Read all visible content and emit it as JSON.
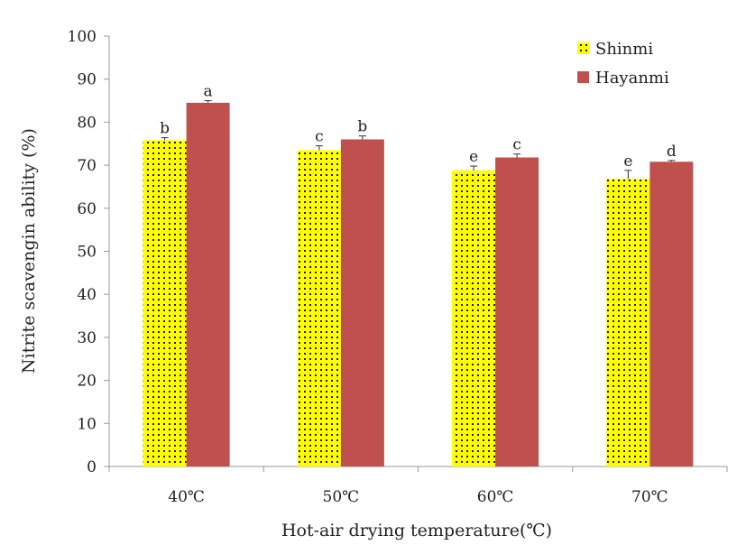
{
  "chart_data": {
    "type": "bar",
    "title": "",
    "xlabel": "Hot-air drying temperature(℃)",
    "ylabel": "Nitrite scavengin ability (%)",
    "categories": [
      "40℃",
      "50℃",
      "60℃",
      "70℃"
    ],
    "ylim": [
      0,
      100
    ],
    "yticks": [
      0,
      10,
      20,
      30,
      40,
      50,
      60,
      70,
      80,
      90,
      100
    ],
    "grid": false,
    "legend_position": "top-right",
    "series": [
      {
        "name": "Shinmi",
        "color": "#ffff00",
        "pattern": "black dots on yellow",
        "values": [
          75.8,
          73.5,
          68.8,
          66.8
        ],
        "errors": [
          0.6,
          1.0,
          1.0,
          2.0
        ],
        "labels": [
          "b",
          "c",
          "e",
          "e"
        ]
      },
      {
        "name": "Hayanmi",
        "color": "#c0504d",
        "values": [
          84.5,
          76.0,
          71.8,
          70.8
        ],
        "errors": [
          0.5,
          0.8,
          0.8,
          0.3
        ],
        "labels": [
          "a",
          "b",
          "c",
          "d"
        ]
      }
    ]
  }
}
